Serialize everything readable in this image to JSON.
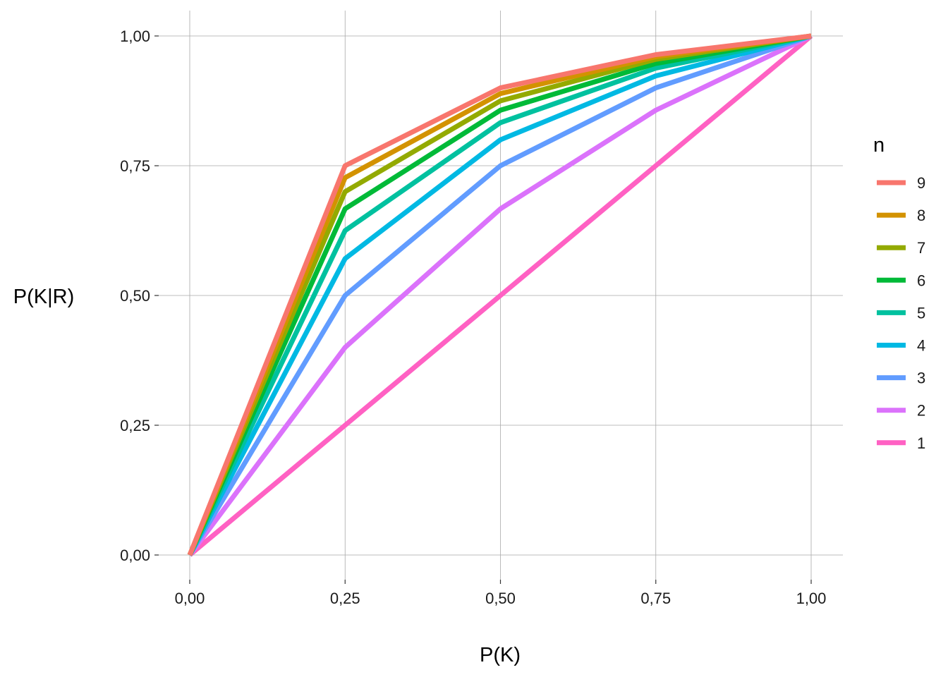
{
  "chart_data": {
    "type": "line",
    "title": "",
    "xlabel": "P(K)",
    "ylabel": "P(K|R)",
    "xlim": [
      0,
      1
    ],
    "ylim": [
      0,
      1
    ],
    "grid": true,
    "x_ticks": [
      0,
      0.25,
      0.5,
      0.75,
      1
    ],
    "x_tick_labels": [
      "0,00",
      "0,25",
      "0,50",
      "0,75",
      "1,00"
    ],
    "y_ticks": [
      0,
      0.25,
      0.5,
      0.75,
      1
    ],
    "y_tick_labels": [
      "0,00",
      "0,25",
      "0,50",
      "0,75",
      "1,00"
    ],
    "x": [
      0,
      0.25,
      0.5,
      0.75,
      1
    ],
    "legend": {
      "title": "n",
      "position": "right"
    },
    "series": [
      {
        "name": "1",
        "color": "#FF61C3",
        "values": [
          0,
          0.25,
          0.5,
          0.75,
          1
        ]
      },
      {
        "name": "2",
        "color": "#DB72FB",
        "values": [
          0,
          0.4,
          0.667,
          0.857,
          1
        ]
      },
      {
        "name": "3",
        "color": "#619CFF",
        "values": [
          0,
          0.5,
          0.75,
          0.9,
          1
        ]
      },
      {
        "name": "4",
        "color": "#00B9E3",
        "values": [
          0,
          0.571,
          0.8,
          0.923,
          1
        ]
      },
      {
        "name": "5",
        "color": "#00C19F",
        "values": [
          0,
          0.625,
          0.833,
          0.938,
          1
        ]
      },
      {
        "name": "6",
        "color": "#00BA38",
        "values": [
          0,
          0.667,
          0.857,
          0.947,
          1
        ]
      },
      {
        "name": "7",
        "color": "#93AA00",
        "values": [
          0,
          0.7,
          0.875,
          0.955,
          1
        ]
      },
      {
        "name": "8",
        "color": "#D39200",
        "values": [
          0,
          0.727,
          0.889,
          0.96,
          1
        ]
      },
      {
        "name": "9",
        "color": "#F8766D",
        "values": [
          0,
          0.75,
          0.9,
          0.964,
          1
        ]
      }
    ]
  }
}
